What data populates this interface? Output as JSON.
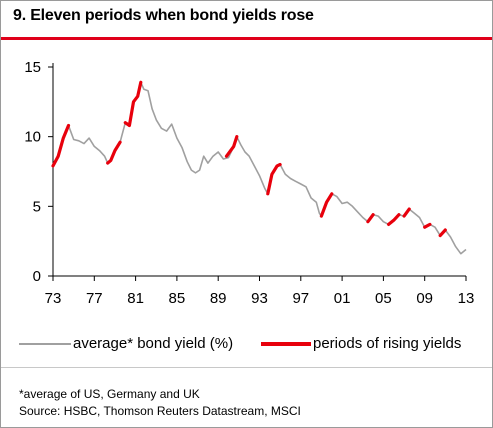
{
  "title": "9. Eleven periods when bond yields rose",
  "legend": {
    "average_label": "average* bond yield (%)",
    "rising_label": "periods of rising yields"
  },
  "footnotes": {
    "note": "*average of US, Germany and UK",
    "source": "Source: HSBC, Thomson Reuters Datastream, MSCI"
  },
  "colors": {
    "average": "#a0a0a0",
    "rising": "#e8000c",
    "title_rule": "#e0001a"
  },
  "chart_data": {
    "type": "line",
    "title": "9. Eleven periods when bond yields rose",
    "xlabel": "",
    "ylabel": "",
    "x_ticks": [
      "73",
      "77",
      "81",
      "85",
      "89",
      "93",
      "97",
      "01",
      "05",
      "09",
      "13"
    ],
    "y_ticks": [
      "0",
      "5",
      "10",
      "15"
    ],
    "xlim": [
      1973,
      2013
    ],
    "ylim": [
      0,
      15
    ],
    "grid": false,
    "legend_position": "bottom",
    "series": [
      {
        "name": "average* bond yield (%)",
        "color": "#a0a0a0",
        "points": [
          [
            1973.0,
            7.9
          ],
          [
            1973.5,
            8.6
          ],
          [
            1974.0,
            9.9
          ],
          [
            1974.5,
            10.8
          ],
          [
            1975.0,
            9.8
          ],
          [
            1975.5,
            9.7
          ],
          [
            1976.0,
            9.5
          ],
          [
            1976.5,
            9.9
          ],
          [
            1977.0,
            9.3
          ],
          [
            1977.5,
            9.0
          ],
          [
            1978.0,
            8.6
          ],
          [
            1978.3,
            8.1
          ],
          [
            1978.6,
            8.3
          ],
          [
            1979.0,
            9.0
          ],
          [
            1979.5,
            9.6
          ],
          [
            1980.0,
            11.0
          ],
          [
            1980.4,
            10.8
          ],
          [
            1980.8,
            12.5
          ],
          [
            1981.2,
            12.9
          ],
          [
            1981.5,
            13.9
          ],
          [
            1981.8,
            13.4
          ],
          [
            1982.2,
            13.3
          ],
          [
            1982.6,
            12.0
          ],
          [
            1983.0,
            11.2
          ],
          [
            1983.5,
            10.6
          ],
          [
            1984.0,
            10.4
          ],
          [
            1984.5,
            10.9
          ],
          [
            1985.0,
            9.9
          ],
          [
            1985.5,
            9.2
          ],
          [
            1986.0,
            8.2
          ],
          [
            1986.4,
            7.6
          ],
          [
            1986.8,
            7.4
          ],
          [
            1987.2,
            7.6
          ],
          [
            1987.6,
            8.6
          ],
          [
            1988.0,
            8.1
          ],
          [
            1988.5,
            8.6
          ],
          [
            1989.0,
            8.9
          ],
          [
            1989.5,
            8.4
          ],
          [
            1990.0,
            8.5
          ],
          [
            1990.5,
            9.3
          ],
          [
            1990.8,
            10.0
          ],
          [
            1991.2,
            9.4
          ],
          [
            1991.6,
            8.9
          ],
          [
            1992.0,
            8.6
          ],
          [
            1992.5,
            7.9
          ],
          [
            1993.0,
            7.2
          ],
          [
            1993.5,
            6.3
          ],
          [
            1993.8,
            5.9
          ],
          [
            1994.2,
            7.3
          ],
          [
            1994.7,
            7.9
          ],
          [
            1995.0,
            8.0
          ],
          [
            1995.5,
            7.3
          ],
          [
            1996.0,
            7.0
          ],
          [
            1996.5,
            6.8
          ],
          [
            1997.0,
            6.6
          ],
          [
            1997.5,
            6.4
          ],
          [
            1998.0,
            5.6
          ],
          [
            1998.5,
            5.3
          ],
          [
            1998.8,
            4.5
          ],
          [
            1999.0,
            4.3
          ],
          [
            1999.5,
            5.3
          ],
          [
            2000.0,
            5.9
          ],
          [
            2000.5,
            5.7
          ],
          [
            2001.0,
            5.2
          ],
          [
            2001.5,
            5.3
          ],
          [
            2002.0,
            5.0
          ],
          [
            2002.5,
            4.6
          ],
          [
            2003.0,
            4.2
          ],
          [
            2003.5,
            3.9
          ],
          [
            2004.0,
            4.4
          ],
          [
            2004.5,
            4.3
          ],
          [
            2005.0,
            3.9
          ],
          [
            2005.5,
            3.7
          ],
          [
            2006.0,
            4.0
          ],
          [
            2006.5,
            4.4
          ],
          [
            2007.0,
            4.3
          ],
          [
            2007.5,
            4.8
          ],
          [
            2008.0,
            4.5
          ],
          [
            2008.5,
            4.2
          ],
          [
            2009.0,
            3.5
          ],
          [
            2009.5,
            3.7
          ],
          [
            2010.0,
            3.5
          ],
          [
            2010.5,
            2.9
          ],
          [
            2011.0,
            3.3
          ],
          [
            2011.5,
            2.8
          ],
          [
            2012.0,
            2.1
          ],
          [
            2012.5,
            1.6
          ],
          [
            2013.0,
            1.9
          ]
        ]
      },
      {
        "name": "periods of rising yields",
        "color": "#e8000c",
        "segments": [
          [
            [
              1973.0,
              7.9
            ],
            [
              1973.5,
              8.6
            ],
            [
              1974.0,
              9.9
            ],
            [
              1974.5,
              10.8
            ]
          ],
          [
            [
              1978.3,
              8.1
            ],
            [
              1978.6,
              8.3
            ],
            [
              1979.0,
              9.0
            ],
            [
              1979.5,
              9.6
            ]
          ],
          [
            [
              1980.0,
              11.0
            ],
            [
              1980.4,
              10.8
            ],
            [
              1980.8,
              12.5
            ],
            [
              1981.2,
              12.9
            ],
            [
              1981.5,
              13.9
            ]
          ],
          [
            [
              1989.8,
              8.6
            ],
            [
              1990.5,
              9.3
            ],
            [
              1990.8,
              10.0
            ]
          ],
          [
            [
              1993.8,
              5.9
            ],
            [
              1994.2,
              7.3
            ],
            [
              1994.7,
              7.9
            ],
            [
              1995.0,
              8.0
            ]
          ],
          [
            [
              1999.0,
              4.3
            ],
            [
              1999.5,
              5.3
            ],
            [
              2000.0,
              5.9
            ]
          ],
          [
            [
              2003.5,
              3.9
            ],
            [
              2004.0,
              4.4
            ]
          ],
          [
            [
              2005.5,
              3.7
            ],
            [
              2006.0,
              4.0
            ],
            [
              2006.5,
              4.4
            ]
          ],
          [
            [
              2007.0,
              4.3
            ],
            [
              2007.5,
              4.8
            ]
          ],
          [
            [
              2009.0,
              3.5
            ],
            [
              2009.5,
              3.7
            ]
          ],
          [
            [
              2010.5,
              2.9
            ],
            [
              2011.0,
              3.3
            ]
          ]
        ]
      }
    ]
  }
}
